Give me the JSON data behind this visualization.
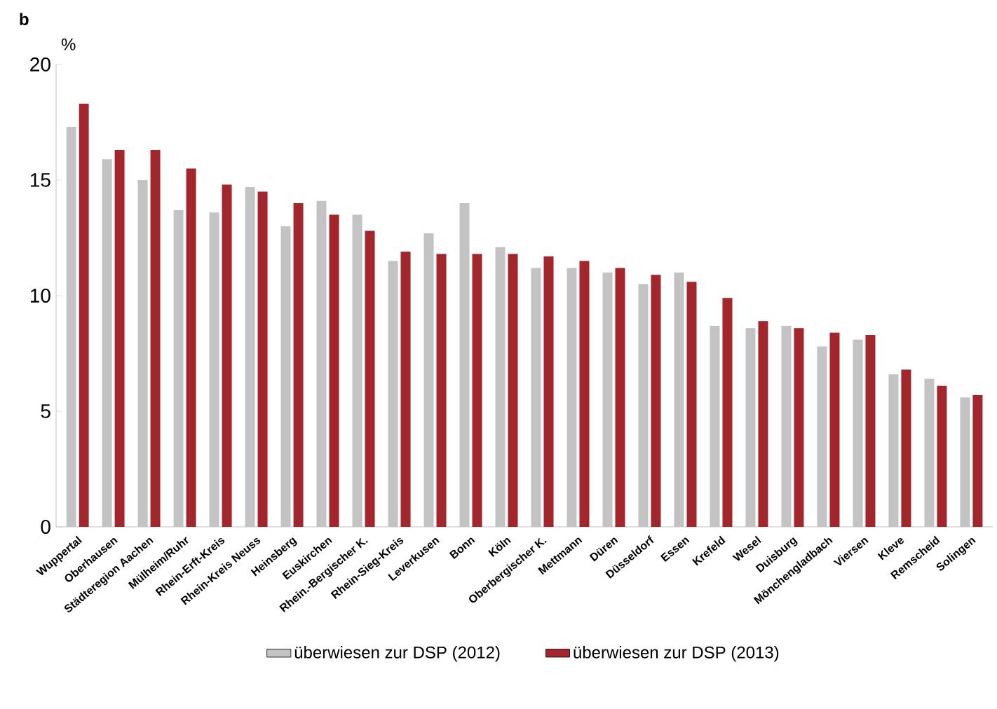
{
  "chart_data": {
    "type": "bar",
    "title": "b",
    "ylabel": "%",
    "categories": [
      "Wuppertal",
      "Oberhausen",
      "Städteregion Aachen",
      "Mülheim/Ruhr",
      "Rhein-Erft-Kreis",
      "Rhein-Kreis Neuss",
      "Heinsberg",
      "Euskirchen",
      "Rhein.-Bergischer K.",
      "Rhein-Sieg-Kreis",
      "Leverkusen",
      "Bonn",
      "Köln",
      "Oberbergischer K.",
      "Mettmann",
      "Düren",
      "Düsseldorf",
      "Essen",
      "Krefeld",
      "Wesel",
      "Duisburg",
      "Mönchengladbach",
      "Viersen",
      "Kleve",
      "Remscheid",
      "Solingen"
    ],
    "series": [
      {
        "name": "überwiesen zur DSP (2012)",
        "color": "#c3c3c3",
        "values": [
          17.3,
          15.9,
          15.0,
          13.7,
          13.6,
          14.7,
          13.0,
          14.1,
          13.5,
          11.5,
          12.7,
          14.0,
          12.1,
          11.2,
          11.2,
          11.0,
          10.5,
          11.0,
          8.7,
          8.6,
          8.7,
          7.8,
          8.1,
          6.6,
          6.4,
          5.6
        ]
      },
      {
        "name": "überwiesen zur DSP (2013)",
        "color": "#a2262c",
        "values": [
          18.3,
          16.3,
          16.3,
          15.5,
          14.8,
          14.5,
          14.0,
          13.5,
          12.8,
          11.9,
          11.8,
          11.8,
          11.8,
          11.7,
          11.5,
          11.2,
          10.9,
          10.6,
          9.9,
          8.9,
          8.6,
          8.4,
          8.3,
          6.8,
          6.1,
          5.7
        ]
      }
    ],
    "ylim": [
      0,
      20
    ],
    "yticks": [
      0,
      5,
      10,
      15,
      20
    ],
    "grid": false,
    "legend": "bottom"
  }
}
